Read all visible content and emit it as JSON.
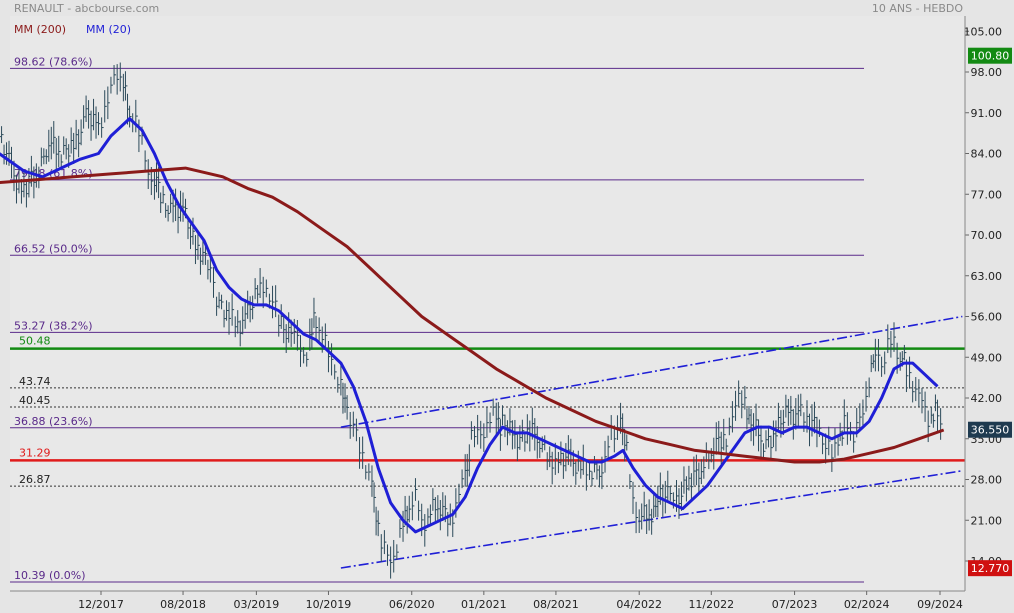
{
  "chart_data": {
    "type": "line",
    "header": {
      "title": "RENAULT - abcbourse.com",
      "period": "10 ANS - HEBDO",
      "legend": [
        {
          "label": "MM (200)",
          "color": "#8b1a1a"
        },
        {
          "label": "MM (20)",
          "color": "#1f1fd6"
        }
      ]
    },
    "y_axis": {
      "ylim": [
        12.77,
        105.0
      ],
      "ticks": [
        "105.00",
        "98.00",
        "91.00",
        "84.00",
        "77.00",
        "70.00",
        "63.00",
        "56.00",
        "49.00",
        "42.00",
        "35.00",
        "28.00",
        "21.00",
        "14.00"
      ],
      "badges": [
        {
          "value": 100.8,
          "label": "100.80",
          "color": "#138a13"
        },
        {
          "value": 36.55,
          "label": "36.550",
          "color": "#1e3a4f"
        },
        {
          "value": 12.77,
          "label": "12.770",
          "color": "#d01010"
        }
      ]
    },
    "x_axis": {
      "range": [
        2017.1,
        2024.85
      ],
      "ticks": [
        {
          "label": "12/2017",
          "x": 2017.92
        },
        {
          "label": "08/2018",
          "x": 2018.58
        },
        {
          "label": "03/2019",
          "x": 2019.17
        },
        {
          "label": "10/2019",
          "x": 2019.75
        },
        {
          "label": "06/2020",
          "x": 2020.42
        },
        {
          "label": "01/2021",
          "x": 2021.0
        },
        {
          "label": "08/2021",
          "x": 2021.58
        },
        {
          "label": "04/2022",
          "x": 2022.25
        },
        {
          "label": "11/2022",
          "x": 2022.83
        },
        {
          "label": "07/2023",
          "x": 2023.5
        },
        {
          "label": "02/2024",
          "x": 2024.08
        },
        {
          "label": "09/2024",
          "x": 2024.67
        }
      ]
    },
    "fibonacci_levels": [
      {
        "value": 98.62,
        "label": "98.62  (78.6%)"
      },
      {
        "value": 79.48,
        "label": "79.48  (61.8%)"
      },
      {
        "value": 66.52,
        "label": "66.52  (50.0%)"
      },
      {
        "value": 53.27,
        "label": "53.27  (38.2%)"
      },
      {
        "value": 36.88,
        "label": "36.88  (23.6%)"
      },
      {
        "value": 10.39,
        "label": "10.39  (0.0%)"
      }
    ],
    "dotted_levels": [
      {
        "value": 43.74,
        "label": "43.74"
      },
      {
        "value": 40.45,
        "label": "40.45"
      },
      {
        "value": 26.87,
        "label": "26.87"
      }
    ],
    "horizontal_lines": [
      {
        "value": 50.48,
        "label": "50.48",
        "color": "#138a13"
      },
      {
        "value": 31.29,
        "label": "31.29",
        "color": "#e01b1b"
      }
    ],
    "channel_lines": [
      {
        "points": [
          [
            2019.85,
            37.0
          ],
          [
            2024.85,
            56.0
          ]
        ]
      },
      {
        "points": [
          [
            2019.85,
            12.8
          ],
          [
            2024.85,
            29.5
          ]
        ]
      }
    ],
    "price_series": [
      [
        2017.1,
        86
      ],
      [
        2017.2,
        82
      ],
      [
        2017.3,
        77
      ],
      [
        2017.4,
        80
      ],
      [
        2017.5,
        87
      ],
      [
        2017.6,
        83
      ],
      [
        2017.7,
        86
      ],
      [
        2017.8,
        90
      ],
      [
        2017.9,
        88
      ],
      [
        2017.95,
        92
      ],
      [
        2018.0,
        96
      ],
      [
        2018.05,
        99
      ],
      [
        2018.1,
        95
      ],
      [
        2018.15,
        90
      ],
      [
        2018.2,
        89
      ],
      [
        2018.25,
        86
      ],
      [
        2018.3,
        82
      ],
      [
        2018.35,
        79
      ],
      [
        2018.4,
        77
      ],
      [
        2018.5,
        74
      ],
      [
        2018.6,
        73
      ],
      [
        2018.7,
        68
      ],
      [
        2018.8,
        64
      ],
      [
        2018.85,
        60
      ],
      [
        2018.95,
        56
      ],
      [
        2019.0,
        54
      ],
      [
        2019.1,
        57
      ],
      [
        2019.2,
        60
      ],
      [
        2019.25,
        62
      ],
      [
        2019.3,
        59
      ],
      [
        2019.35,
        56
      ],
      [
        2019.45,
        53
      ],
      [
        2019.5,
        51
      ],
      [
        2019.55,
        49
      ],
      [
        2019.6,
        52
      ],
      [
        2019.65,
        56
      ],
      [
        2019.7,
        53
      ],
      [
        2019.75,
        49
      ],
      [
        2019.8,
        46
      ],
      [
        2019.85,
        43
      ],
      [
        2019.9,
        41
      ],
      [
        2019.95,
        38
      ],
      [
        2020.0,
        34
      ],
      [
        2020.05,
        30
      ],
      [
        2020.1,
        26
      ],
      [
        2020.15,
        20
      ],
      [
        2020.2,
        16
      ],
      [
        2020.25,
        15
      ],
      [
        2020.3,
        17
      ],
      [
        2020.35,
        20
      ],
      [
        2020.4,
        23
      ],
      [
        2020.45,
        24
      ],
      [
        2020.5,
        21
      ],
      [
        2020.55,
        22
      ],
      [
        2020.65,
        23
      ],
      [
        2020.75,
        22
      ],
      [
        2020.8,
        24
      ],
      [
        2020.85,
        29
      ],
      [
        2020.9,
        35
      ],
      [
        2020.95,
        37
      ],
      [
        2021.0,
        37
      ],
      [
        2021.05,
        38
      ],
      [
        2021.1,
        39
      ],
      [
        2021.15,
        37
      ],
      [
        2021.25,
        35
      ],
      [
        2021.35,
        37
      ],
      [
        2021.45,
        34
      ],
      [
        2021.55,
        32
      ],
      [
        2021.6,
        30
      ],
      [
        2021.7,
        32
      ],
      [
        2021.8,
        30
      ],
      [
        2021.85,
        29
      ],
      [
        2021.95,
        31
      ],
      [
        2022.0,
        34
      ],
      [
        2022.05,
        36
      ],
      [
        2022.1,
        37
      ],
      [
        2022.15,
        33
      ],
      [
        2022.2,
        25
      ],
      [
        2022.25,
        21
      ],
      [
        2022.35,
        23
      ],
      [
        2022.4,
        24
      ],
      [
        2022.5,
        25
      ],
      [
        2022.55,
        24
      ],
      [
        2022.65,
        27
      ],
      [
        2022.75,
        31
      ],
      [
        2022.85,
        33
      ],
      [
        2022.95,
        35
      ],
      [
        2023.0,
        38
      ],
      [
        2023.05,
        41
      ],
      [
        2023.1,
        42
      ],
      [
        2023.15,
        37
      ],
      [
        2023.25,
        35
      ],
      [
        2023.35,
        36
      ],
      [
        2023.45,
        39
      ],
      [
        2023.55,
        40
      ],
      [
        2023.6,
        37
      ],
      [
        2023.7,
        38
      ],
      [
        2023.75,
        34
      ],
      [
        2023.8,
        33
      ],
      [
        2023.85,
        34
      ],
      [
        2023.9,
        37
      ],
      [
        2023.95,
        36
      ],
      [
        2024.0,
        37
      ],
      [
        2024.05,
        41
      ],
      [
        2024.1,
        45
      ],
      [
        2024.15,
        49
      ],
      [
        2024.2,
        47
      ],
      [
        2024.25,
        50
      ],
      [
        2024.3,
        53
      ],
      [
        2024.35,
        49
      ],
      [
        2024.4,
        47
      ],
      [
        2024.45,
        44
      ],
      [
        2024.5,
        41
      ],
      [
        2024.55,
        40
      ],
      [
        2024.6,
        38
      ],
      [
        2024.65,
        40
      ],
      [
        2024.7,
        37
      ]
    ],
    "series": [
      {
        "name": "MM (20)",
        "color": "#1f1fd6",
        "points": [
          [
            2017.1,
            84
          ],
          [
            2017.3,
            81
          ],
          [
            2017.45,
            80
          ],
          [
            2017.55,
            81
          ],
          [
            2017.65,
            82
          ],
          [
            2017.75,
            83
          ],
          [
            2017.9,
            84
          ],
          [
            2018.0,
            87
          ],
          [
            2018.1,
            89
          ],
          [
            2018.15,
            90
          ],
          [
            2018.25,
            88
          ],
          [
            2018.35,
            84
          ],
          [
            2018.45,
            79
          ],
          [
            2018.55,
            75
          ],
          [
            2018.65,
            72
          ],
          [
            2018.75,
            69
          ],
          [
            2018.85,
            64
          ],
          [
            2018.95,
            61
          ],
          [
            2019.05,
            59
          ],
          [
            2019.15,
            58
          ],
          [
            2019.25,
            58
          ],
          [
            2019.35,
            57
          ],
          [
            2019.45,
            55
          ],
          [
            2019.55,
            53
          ],
          [
            2019.65,
            52
          ],
          [
            2019.75,
            50
          ],
          [
            2019.85,
            48
          ],
          [
            2019.95,
            44
          ],
          [
            2020.05,
            38
          ],
          [
            2020.15,
            30
          ],
          [
            2020.25,
            24
          ],
          [
            2020.35,
            21
          ],
          [
            2020.45,
            19
          ],
          [
            2020.55,
            20
          ],
          [
            2020.65,
            21
          ],
          [
            2020.75,
            22
          ],
          [
            2020.85,
            25
          ],
          [
            2020.95,
            30
          ],
          [
            2021.05,
            34
          ],
          [
            2021.15,
            37
          ],
          [
            2021.25,
            36
          ],
          [
            2021.35,
            36
          ],
          [
            2021.45,
            35
          ],
          [
            2021.55,
            34
          ],
          [
            2021.65,
            33
          ],
          [
            2021.75,
            32
          ],
          [
            2021.85,
            31
          ],
          [
            2021.95,
            31
          ],
          [
            2022.05,
            32
          ],
          [
            2022.12,
            33
          ],
          [
            2022.2,
            30
          ],
          [
            2022.3,
            27
          ],
          [
            2022.4,
            25
          ],
          [
            2022.5,
            24
          ],
          [
            2022.6,
            23
          ],
          [
            2022.7,
            25
          ],
          [
            2022.8,
            27
          ],
          [
            2022.9,
            30
          ],
          [
            2023.0,
            33
          ],
          [
            2023.1,
            36
          ],
          [
            2023.2,
            37
          ],
          [
            2023.3,
            37
          ],
          [
            2023.4,
            36
          ],
          [
            2023.5,
            37
          ],
          [
            2023.6,
            37
          ],
          [
            2023.7,
            36
          ],
          [
            2023.8,
            35
          ],
          [
            2023.9,
            36
          ],
          [
            2024.0,
            36
          ],
          [
            2024.1,
            38
          ],
          [
            2024.2,
            42
          ],
          [
            2024.3,
            47
          ],
          [
            2024.38,
            48
          ],
          [
            2024.45,
            48
          ],
          [
            2024.55,
            46
          ],
          [
            2024.65,
            44
          ]
        ]
      },
      {
        "name": "MM (200)",
        "color": "#8b1a1a",
        "points": [
          [
            2017.1,
            79
          ],
          [
            2017.4,
            79.5
          ],
          [
            2017.7,
            80
          ],
          [
            2018.0,
            80.5
          ],
          [
            2018.3,
            81
          ],
          [
            2018.6,
            81.5
          ],
          [
            2018.9,
            80
          ],
          [
            2019.1,
            78
          ],
          [
            2019.3,
            76.5
          ],
          [
            2019.5,
            74
          ],
          [
            2019.7,
            71
          ],
          [
            2019.9,
            68
          ],
          [
            2020.1,
            64
          ],
          [
            2020.3,
            60
          ],
          [
            2020.5,
            56
          ],
          [
            2020.7,
            53
          ],
          [
            2020.9,
            50
          ],
          [
            2021.1,
            47
          ],
          [
            2021.3,
            44.5
          ],
          [
            2021.5,
            42
          ],
          [
            2021.7,
            40
          ],
          [
            2021.9,
            38
          ],
          [
            2022.1,
            36.5
          ],
          [
            2022.3,
            35
          ],
          [
            2022.5,
            34
          ],
          [
            2022.7,
            33
          ],
          [
            2022.9,
            32.5
          ],
          [
            2023.1,
            32
          ],
          [
            2023.3,
            31.5
          ],
          [
            2023.5,
            31
          ],
          [
            2023.7,
            31
          ],
          [
            2023.9,
            31.5
          ],
          [
            2024.1,
            32.5
          ],
          [
            2024.3,
            33.5
          ],
          [
            2024.5,
            35
          ],
          [
            2024.7,
            36.5
          ]
        ]
      }
    ]
  }
}
